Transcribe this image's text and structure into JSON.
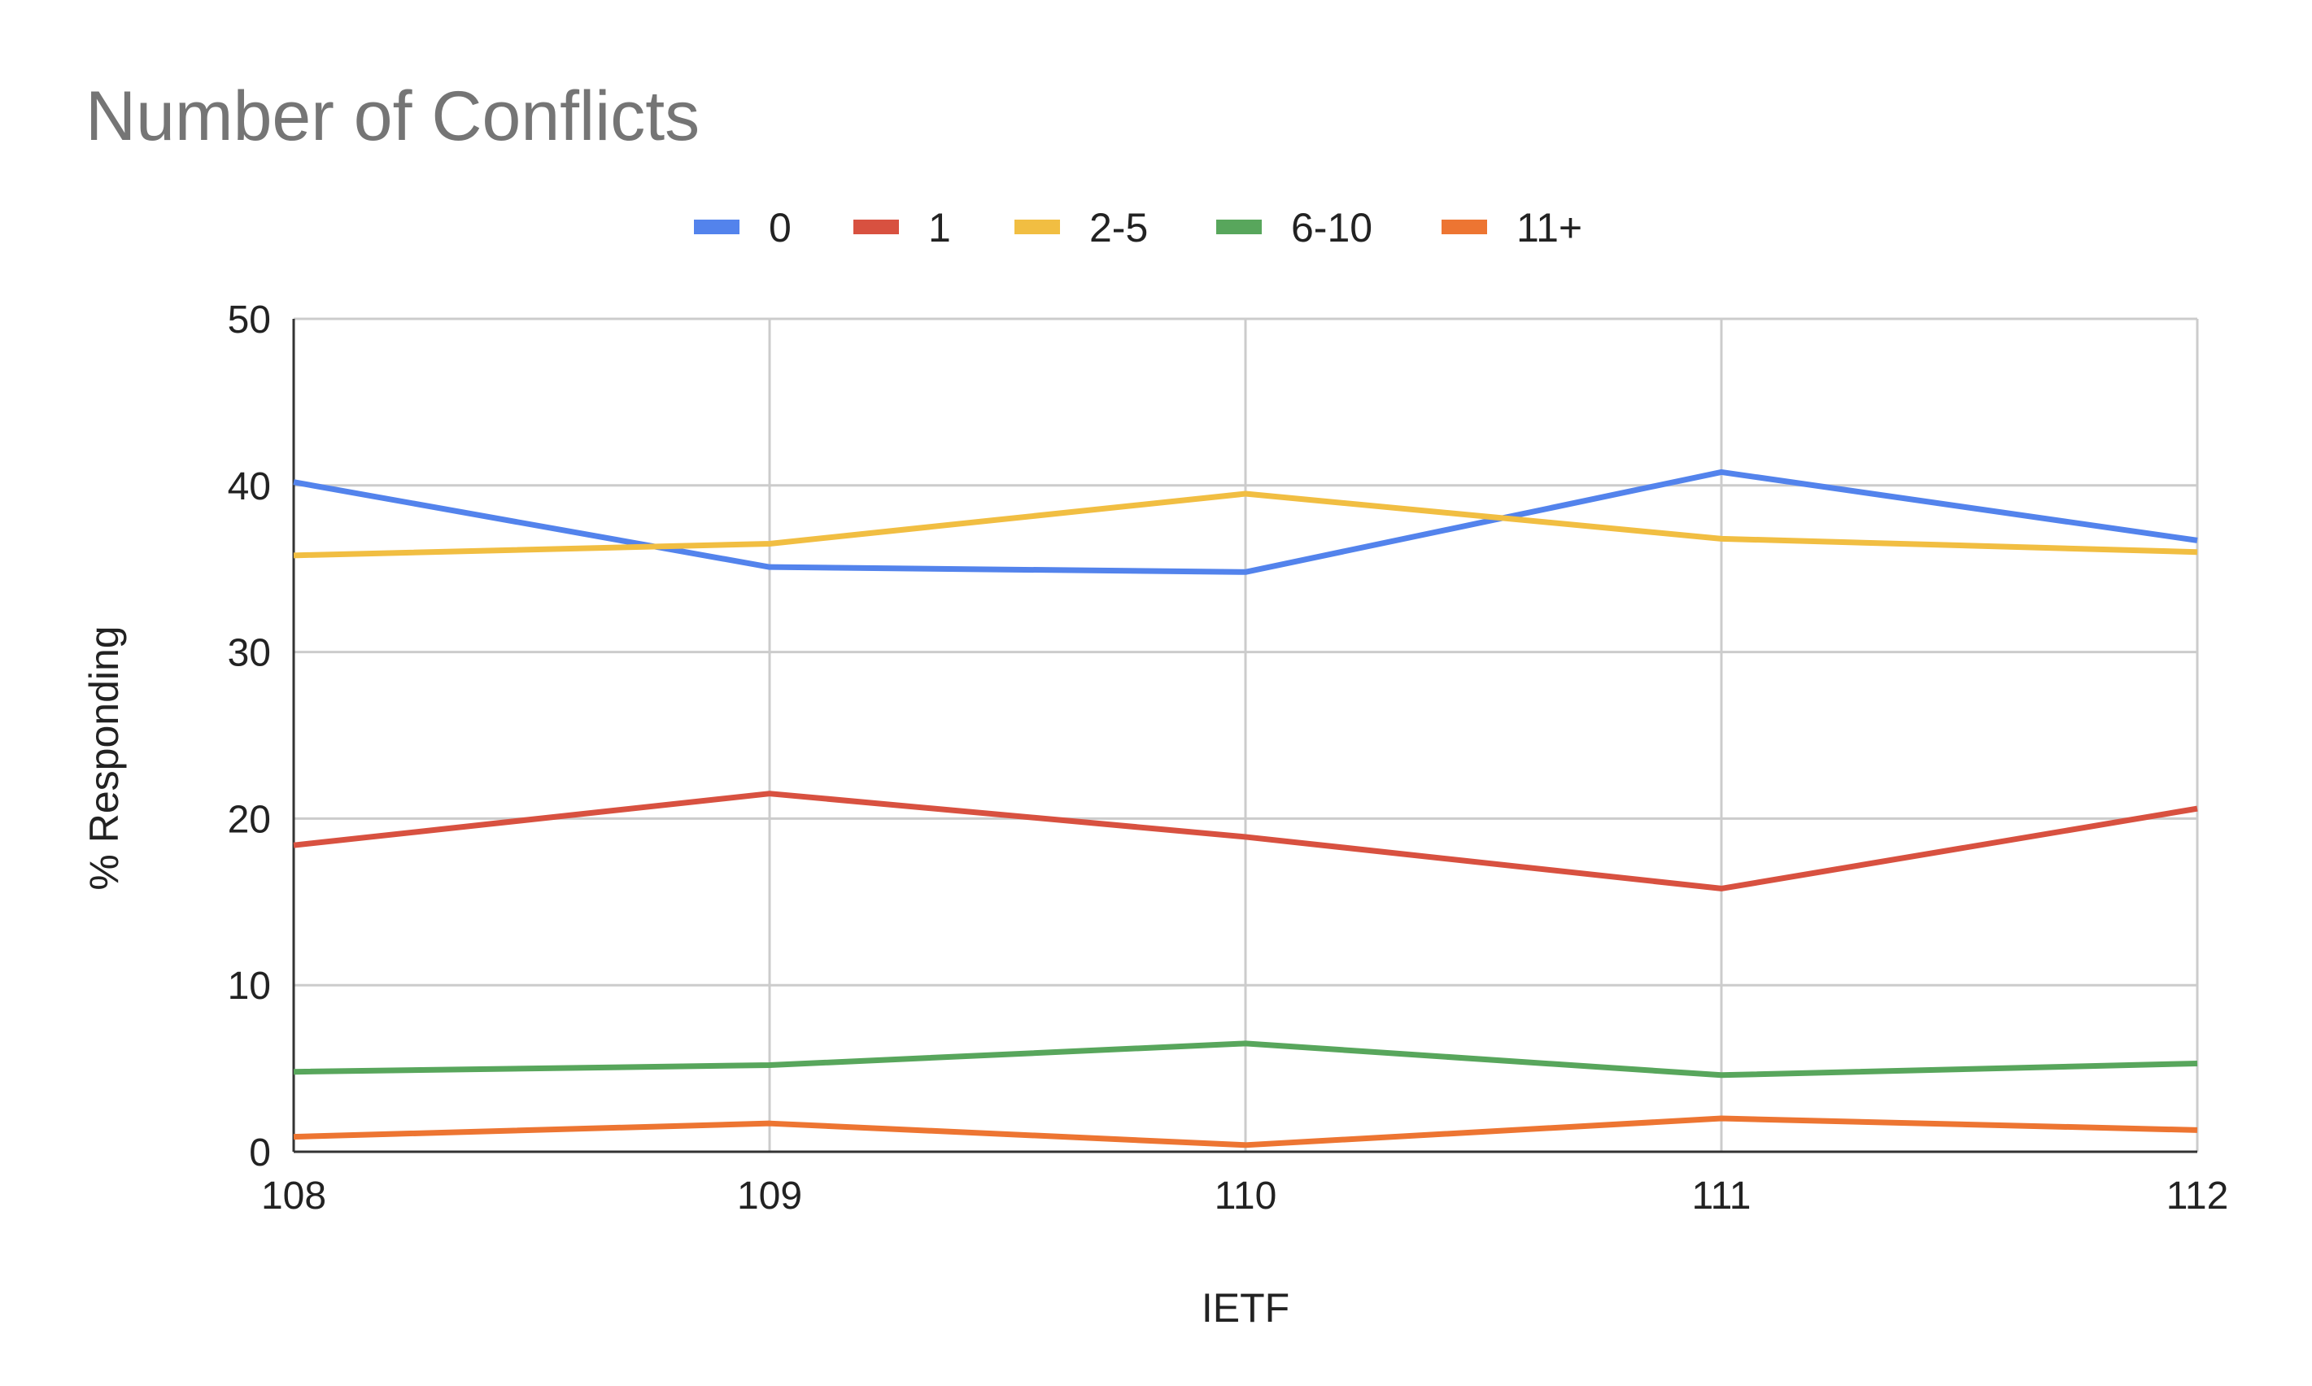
{
  "chart_data": {
    "type": "line",
    "title": "Number of Conflicts",
    "xlabel": "IETF",
    "ylabel": "% Responding",
    "categories": [
      "108",
      "109",
      "110",
      "111",
      "112"
    ],
    "ylim": [
      0,
      50
    ],
    "yticks": [
      "0",
      "10",
      "20",
      "30",
      "40",
      "50"
    ],
    "grid": true,
    "legend": "top",
    "series": [
      {
        "name": "0",
        "color": "#5383ec",
        "values": [
          40.2,
          35.1,
          34.8,
          40.8,
          36.7
        ]
      },
      {
        "name": "1",
        "color": "#d85140",
        "values": [
          18.4,
          21.5,
          18.9,
          15.8,
          20.6
        ]
      },
      {
        "name": "2-5",
        "color": "#f1be42",
        "values": [
          35.8,
          36.5,
          39.5,
          36.8,
          36.0
        ]
      },
      {
        "name": "6-10",
        "color": "#58a65c",
        "values": [
          4.8,
          5.2,
          6.5,
          4.6,
          5.3
        ]
      },
      {
        "name": "11+",
        "color": "#ed7532",
        "values": [
          0.9,
          1.7,
          0.4,
          2.0,
          1.3
        ]
      }
    ]
  }
}
